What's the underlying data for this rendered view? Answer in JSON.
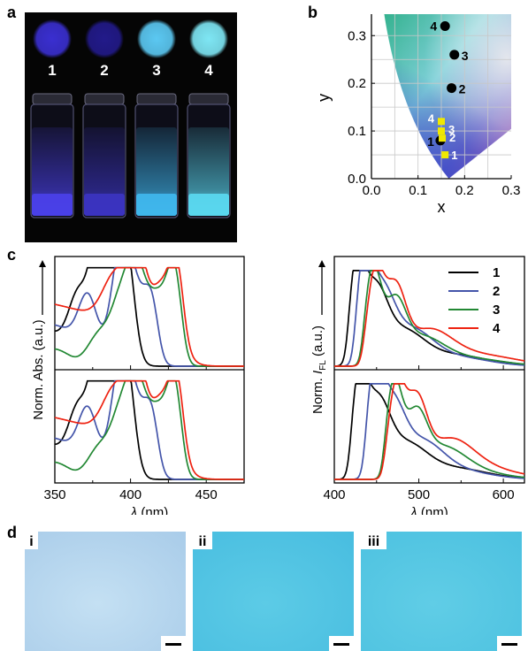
{
  "panels": {
    "a": "a",
    "b": "b",
    "c": "c",
    "d": "d"
  },
  "panel_a": {
    "samples": [
      {
        "label": "1",
        "dot_color": "#3a2fd0",
        "vial_color": "#4a40e8"
      },
      {
        "label": "2",
        "dot_color": "#221a8a",
        "vial_color": "#3b34c0"
      },
      {
        "label": "3",
        "dot_color": "#5bc8f2",
        "vial_color": "#3fb6ec"
      },
      {
        "label": "4",
        "dot_color": "#7ee6f4",
        "vial_color": "#5ad7ee"
      }
    ]
  },
  "panel_b": {
    "xlabel": "x",
    "ylabel": "y",
    "xticks": [
      "0.0",
      "0.1",
      "0.2",
      "0.3"
    ],
    "yticks": [
      "0.0",
      "0.1",
      "0.2",
      "0.3"
    ],
    "circles": [
      {
        "label": "1",
        "x": 0.148,
        "y": 0.08
      },
      {
        "label": "2",
        "x": 0.172,
        "y": 0.19
      },
      {
        "label": "3",
        "x": 0.178,
        "y": 0.26
      },
      {
        "label": "4",
        "x": 0.158,
        "y": 0.32
      }
    ],
    "squares": [
      {
        "label": "1",
        "x": 0.158,
        "y": 0.05
      },
      {
        "label": "2",
        "x": 0.152,
        "y": 0.085
      },
      {
        "label": "3",
        "x": 0.15,
        "y": 0.1
      },
      {
        "label": "4",
        "x": 0.15,
        "y": 0.12
      }
    ]
  },
  "chart_data": [
    {
      "type": "line",
      "name": "absorption",
      "xlabel": "λ (nm)",
      "ylabel": "Norm. Abs. (a.u.)",
      "xlim": [
        350,
        475
      ],
      "xticks": [
        "350",
        "400",
        "450"
      ],
      "series": [
        {
          "name": "1",
          "color": "#000000"
        },
        {
          "name": "2",
          "color": "#4455aa"
        },
        {
          "name": "3",
          "color": "#228833"
        },
        {
          "name": "4",
          "color": "#ee2211"
        }
      ]
    },
    {
      "type": "line",
      "name": "fluorescence",
      "xlabel": "λ (nm)",
      "ylabel_prefix": "Norm. ",
      "ylabel_italic": "I",
      "ylabel_sub": "FL",
      "ylabel_suffix": " (a.u.)",
      "xlim": [
        400,
        625
      ],
      "xticks": [
        "400",
        "500",
        "600"
      ],
      "series": [
        {
          "name": "1",
          "color": "#000000"
        },
        {
          "name": "2",
          "color": "#4455aa"
        },
        {
          "name": "3",
          "color": "#228833"
        },
        {
          "name": "4",
          "color": "#ee2211"
        }
      ]
    }
  ],
  "panel_d": {
    "images": [
      {
        "label": "i",
        "color_a": "#a9cce9",
        "color_b": "#c4e0f3"
      },
      {
        "label": "ii",
        "color_a": "#48bde0",
        "color_b": "#5ccbe6"
      },
      {
        "label": "iii",
        "color_a": "#4cc1e0",
        "color_b": "#60cde6"
      }
    ]
  }
}
